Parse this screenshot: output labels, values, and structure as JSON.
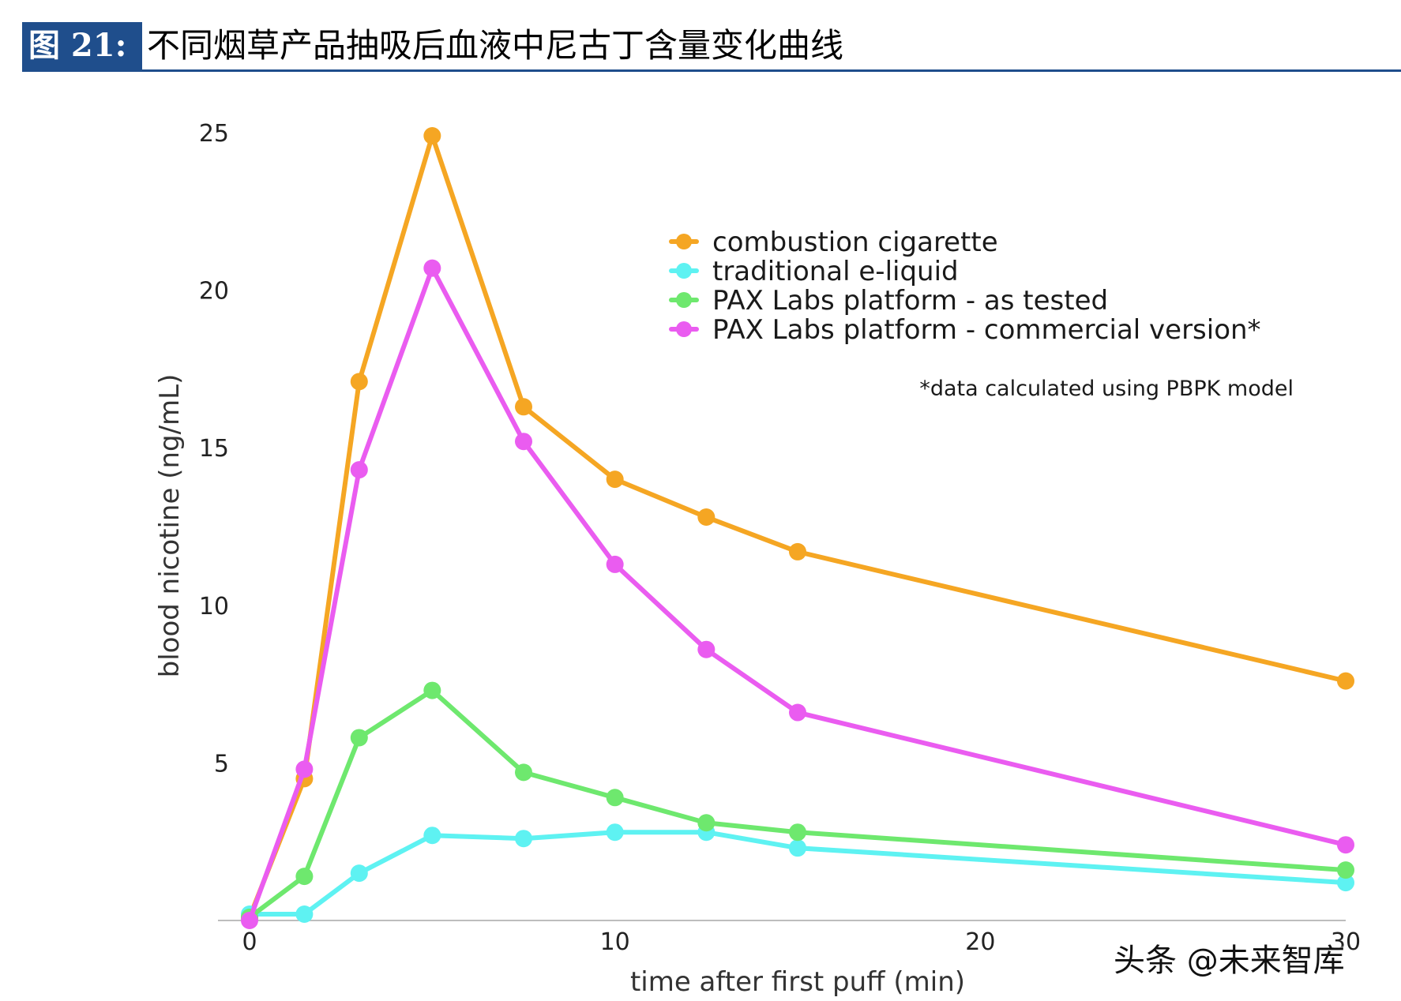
{
  "figure": {
    "label": "图 21:",
    "title": "不同烟草产品抽吸后血液中尼古丁含量变化曲线"
  },
  "watermark": "头条 @未来智库",
  "chart_data": {
    "type": "line",
    "title": "",
    "xlabel": "time after first puff (min)",
    "ylabel": "blood nicotine (ng/mL)",
    "xlim": [
      0,
      30
    ],
    "ylim": [
      0,
      25
    ],
    "x_ticks": [
      0,
      10,
      20,
      30
    ],
    "x_tick_labels": [
      "0",
      "10",
      "20",
      "30"
    ],
    "y_ticks": [
      5,
      10,
      15,
      20,
      25
    ],
    "y_tick_labels": [
      "5",
      "10",
      "15",
      "20",
      "25"
    ],
    "x": [
      0,
      1.5,
      3,
      5,
      7.5,
      10,
      12.5,
      15,
      30
    ],
    "series": [
      {
        "name": "combustion cigarette",
        "color": "#f5a623",
        "values": [
          0.1,
          4.5,
          17.1,
          24.9,
          16.3,
          14.0,
          12.8,
          11.7,
          7.6
        ]
      },
      {
        "name": "traditional e-liquid",
        "color": "#5ef2f2",
        "values": [
          0.2,
          0.2,
          1.5,
          2.7,
          2.6,
          2.8,
          2.8,
          2.3,
          1.2
        ]
      },
      {
        "name": "PAX Labs platform - as tested",
        "color": "#6ee86e",
        "values": [
          0.1,
          1.4,
          5.8,
          7.3,
          4.7,
          3.9,
          3.1,
          2.8,
          1.6
        ]
      },
      {
        "name": "PAX Labs platform - commercial version*",
        "color": "#ea5cf0",
        "values": [
          0.0,
          4.8,
          14.3,
          20.7,
          15.2,
          11.3,
          8.6,
          6.6,
          2.4
        ]
      }
    ],
    "legend_position": "top-right",
    "annotation": "*data calculated using PBPK model"
  }
}
